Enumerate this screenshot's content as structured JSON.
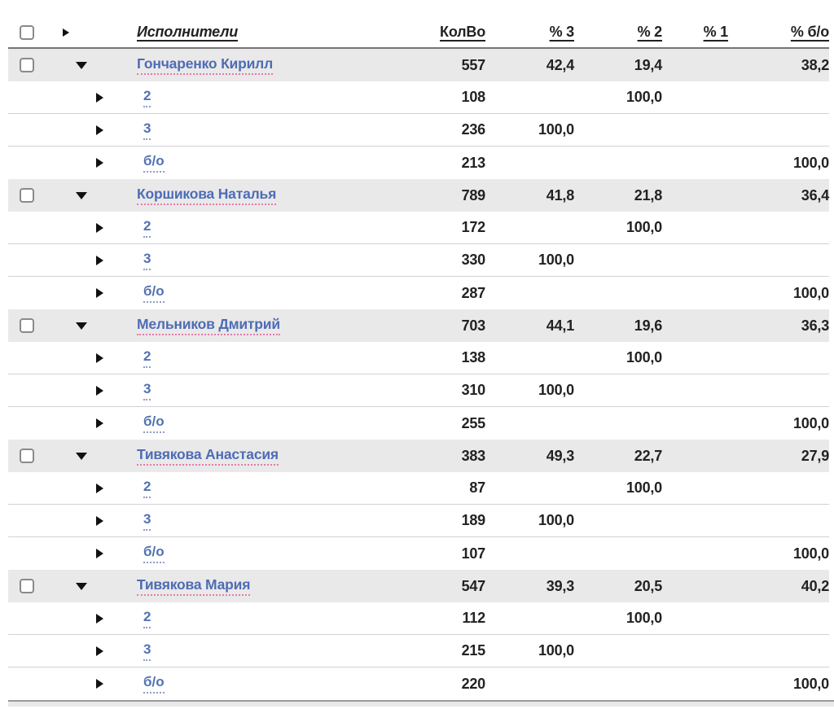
{
  "table": {
    "columns": {
      "performers": "Исполнители",
      "count": "КолВо",
      "p3": "% 3",
      "p2": "% 2",
      "p1": "% 1",
      "pbo": "% б/о"
    },
    "groups": [
      {
        "name": "Гончаренко Кирилл",
        "count": "557",
        "p3": "42,4",
        "p2": "19,4",
        "p1": "",
        "pbo": "38,2",
        "children": [
          {
            "label": "2",
            "count": "108",
            "p3": "",
            "p2": "100,0",
            "p1": "",
            "pbo": ""
          },
          {
            "label": "3",
            "count": "236",
            "p3": "100,0",
            "p2": "",
            "p1": "",
            "pbo": ""
          },
          {
            "label": "б/о",
            "count": "213",
            "p3": "",
            "p2": "",
            "p1": "",
            "pbo": "100,0"
          }
        ]
      },
      {
        "name": "Коршикова Наталья",
        "count": "789",
        "p3": "41,8",
        "p2": "21,8",
        "p1": "",
        "pbo": "36,4",
        "children": [
          {
            "label": "2",
            "count": "172",
            "p3": "",
            "p2": "100,0",
            "p1": "",
            "pbo": ""
          },
          {
            "label": "3",
            "count": "330",
            "p3": "100,0",
            "p2": "",
            "p1": "",
            "pbo": ""
          },
          {
            "label": "б/о",
            "count": "287",
            "p3": "",
            "p2": "",
            "p1": "",
            "pbo": "100,0"
          }
        ]
      },
      {
        "name": "Мельников Дмитрий",
        "count": "703",
        "p3": "44,1",
        "p2": "19,6",
        "p1": "",
        "pbo": "36,3",
        "children": [
          {
            "label": "2",
            "count": "138",
            "p3": "",
            "p2": "100,0",
            "p1": "",
            "pbo": ""
          },
          {
            "label": "3",
            "count": "310",
            "p3": "100,0",
            "p2": "",
            "p1": "",
            "pbo": ""
          },
          {
            "label": "б/о",
            "count": "255",
            "p3": "",
            "p2": "",
            "p1": "",
            "pbo": "100,0"
          }
        ]
      },
      {
        "name": "Тивякова Анастасия",
        "count": "383",
        "p3": "49,3",
        "p2": "22,7",
        "p1": "",
        "pbo": "27,9",
        "children": [
          {
            "label": "2",
            "count": "87",
            "p3": "",
            "p2": "100,0",
            "p1": "",
            "pbo": ""
          },
          {
            "label": "3",
            "count": "189",
            "p3": "100,0",
            "p2": "",
            "p1": "",
            "pbo": ""
          },
          {
            "label": "б/о",
            "count": "107",
            "p3": "",
            "p2": "",
            "p1": "",
            "pbo": "100,0"
          }
        ]
      },
      {
        "name": "Тивякова Мария",
        "count": "547",
        "p3": "39,3",
        "p2": "20,5",
        "p1": "",
        "pbo": "40,2",
        "children": [
          {
            "label": "2",
            "count": "112",
            "p3": "",
            "p2": "100,0",
            "p1": "",
            "pbo": ""
          },
          {
            "label": "3",
            "count": "215",
            "p3": "100,0",
            "p2": "",
            "p1": "",
            "pbo": ""
          },
          {
            "label": "б/о",
            "count": "220",
            "p3": "",
            "p2": "",
            "p1": "",
            "pbo": "100,0"
          }
        ]
      }
    ]
  },
  "colors": {
    "link_blue": "#4e6cb5",
    "name_underline_pink": "#e878ab",
    "grade_underline_blue": "#8e9fc4",
    "group_row_bg": "#e9e9e9",
    "header_border": "#757575",
    "row_separator": "#d2d2d2",
    "text_dark": "#222222"
  }
}
